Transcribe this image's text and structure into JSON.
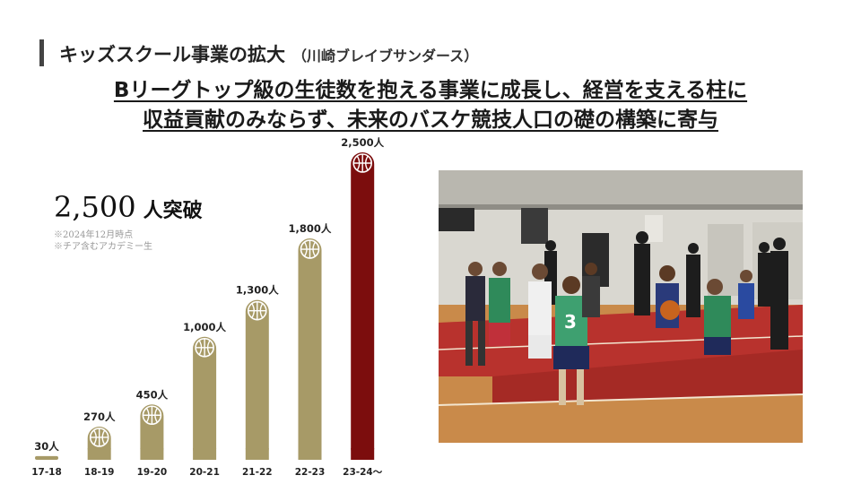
{
  "title": {
    "main": "キッズスクール事業の拡大",
    "sub": "（川崎ブレイブサンダース）"
  },
  "headline": {
    "line1": "Bリーグトップ級の生徒数を抱える事業に成長し、経営を支える柱に",
    "line2": "収益貢献のみならず、未来のバスケ競技人口の礎の構築に寄与"
  },
  "milestone": {
    "value": "2,500",
    "label": "人突破",
    "note1": "※2024年12月時点",
    "note2": "※チア含むアカデミー生"
  },
  "colors": {
    "bar": "#a79a67",
    "bar_highlight": "#7c0d0d",
    "ball_fill": "#ffffff"
  },
  "chart_data": {
    "type": "bar",
    "categories": [
      "17-18",
      "18-19",
      "19-20",
      "20-21",
      "21-22",
      "22-23",
      "23-24〜"
    ],
    "values": [
      30,
      270,
      450,
      1000,
      1300,
      1800,
      2500
    ],
    "value_labels": [
      "30人",
      "270人",
      "450人",
      "1,000人",
      "1,300人",
      "1,800人",
      "2,500人"
    ],
    "highlight_index": 6,
    "ylim": [
      0,
      2500
    ],
    "grid": false,
    "legend": "none"
  },
  "photo": {
    "description_icon": "basketball-practice-photo",
    "jersey_number": "3"
  }
}
